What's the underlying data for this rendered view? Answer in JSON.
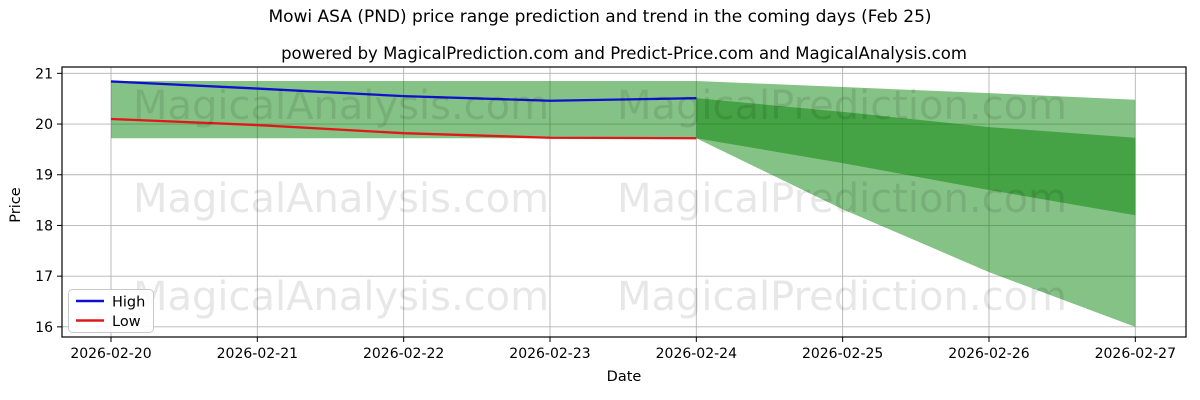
{
  "title": "Mowi ASA (PND) price range prediction and trend in the coming days (Feb 25)",
  "subtitle": "powered by MagicalPrediction.com and Predict-Price.com and MagicalAnalysis.com",
  "watermark": {
    "left": "MagicalAnalysis.com",
    "right": "MagicalPrediction.com"
  },
  "legend": {
    "items": [
      {
        "label": "High",
        "color": "#1010d0"
      },
      {
        "label": "Low",
        "color": "#e01818"
      }
    ]
  },
  "chart_data": {
    "type": "line",
    "title": "Mowi ASA (PND) price range prediction and trend in the coming days (Feb 25)",
    "xlabel": "Date",
    "ylabel": "Price",
    "categories": [
      "2026-02-20",
      "2026-02-21",
      "2026-02-22",
      "2026-02-23",
      "2026-02-24",
      "2026-02-25",
      "2026-02-26",
      "2026-02-27"
    ],
    "series": [
      {
        "name": "High",
        "color": "#1010d0",
        "values": [
          20.84,
          20.7,
          20.55,
          20.46,
          20.51
        ]
      },
      {
        "name": "Low",
        "color": "#e01818",
        "values": [
          20.1,
          19.98,
          19.82,
          19.73,
          19.72
        ]
      }
    ],
    "bands": {
      "range_band": {
        "x": [
          0,
          1,
          2,
          3,
          4,
          5,
          6,
          7
        ],
        "top": [
          20.85,
          20.85,
          20.85,
          20.85,
          20.85,
          20.73,
          20.61,
          20.48
        ],
        "bottom": [
          19.72,
          19.72,
          19.72,
          19.72,
          19.72,
          18.32,
          17.08,
          16.0
        ]
      },
      "forecast_inner_band": {
        "x": [
          4,
          5,
          6,
          7
        ],
        "top": [
          20.51,
          20.24,
          19.94,
          19.73
        ],
        "bottom": [
          19.72,
          19.23,
          18.7,
          18.2
        ]
      }
    },
    "band_color": "#008000",
    "band_alpha": 0.48,
    "ylim": [
      15.8,
      21.125
    ],
    "yticks": [
      16,
      17,
      18,
      19,
      20,
      21
    ],
    "grid": true,
    "legend_position": "lower left"
  }
}
